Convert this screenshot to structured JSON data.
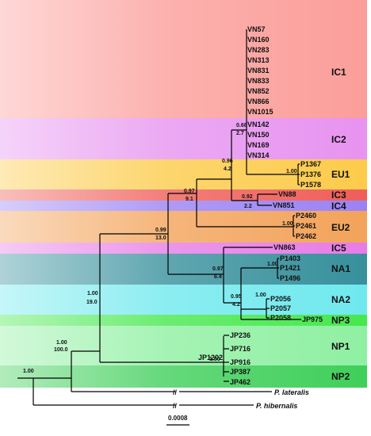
{
  "clades": [
    {
      "label": "IC1",
      "color": "#fb9e9a"
    },
    {
      "label": "IC2",
      "color": "#e793f0"
    },
    {
      "label": "EU1",
      "color": "#fccb4a"
    },
    {
      "label": "IC3",
      "color": "#ef5e59"
    },
    {
      "label": "IC4",
      "color": "#9b82f4"
    },
    {
      "label": "EU2",
      "color": "#f3a35a"
    },
    {
      "label": "IC5",
      "color": "#e77ce7"
    },
    {
      "label": "NA1",
      "color": "#37909c"
    },
    {
      "label": "NA2",
      "color": "#6fe9ee"
    },
    {
      "label": "NP3",
      "color": "#46e84d"
    },
    {
      "label": "NP1",
      "color": "#8ff0a2"
    },
    {
      "label": "NP2",
      "color": "#3fcf5a"
    }
  ],
  "taxa": {
    "ic1": [
      "VN57",
      "VN160",
      "VN283",
      "VN313",
      "VN831",
      "VN833",
      "VN852",
      "VN866",
      "VN1015"
    ],
    "ic2": [
      "VN142",
      "VN150",
      "VN169",
      "VN314"
    ],
    "eu1": [
      "P1367",
      "P1376",
      "P1578"
    ],
    "ic3": "VN88",
    "ic4": "VN851",
    "eu2": [
      "P2460",
      "P2461",
      "P2462"
    ],
    "ic5": "VN863",
    "na1": [
      "P1403",
      "P1421",
      "P1496"
    ],
    "na2": [
      "P2056",
      "P2057",
      "P2058"
    ],
    "np3": "JP975",
    "np1": [
      "JP236",
      "JP716",
      "JP916",
      "JP1202"
    ],
    "np2": [
      "JP387",
      "JP462"
    ],
    "outgroups": [
      "P. lateralis",
      "P. hibernalis"
    ]
  },
  "support": {
    "ic": {
      "pp": "0.68",
      "bs": "2.7"
    },
    "eu1ic": {
      "pp": "0.96",
      "bs": "4.2"
    },
    "eu1": {
      "pp": "1.00"
    },
    "ic34": {
      "pp": "0.92",
      "bs": "2.2"
    },
    "eu2ic": {
      "pp": "0.97",
      "bs": "9.1"
    },
    "eu2": {
      "pp": "1.00"
    },
    "upper": {
      "pp": "0.99",
      "bs": "13.0"
    },
    "na": {
      "pp": "0.97",
      "bs": "6.4"
    },
    "na1": {
      "pp": "1.00"
    },
    "na2np3": {
      "pp": "0.95",
      "bs": "4.2"
    },
    "na2": {
      "pp": "1.00"
    },
    "ingroup": {
      "pp": "1.00",
      "bs": "19.0"
    },
    "np1np2": {
      "pp": "1.00"
    },
    "withlat": {
      "pp": "1.00",
      "bs": "100.0"
    },
    "root": {
      "pp": "1.00"
    }
  },
  "scale_label": "0.0008",
  "break_mark": "//"
}
